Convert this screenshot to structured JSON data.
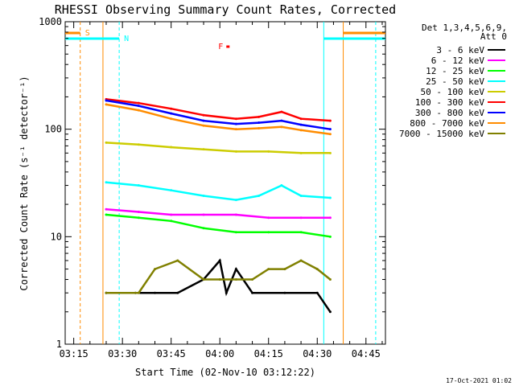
{
  "chart_data": {
    "type": "line",
    "title": "RHESSI Observing Summary Count Rates, Corrected",
    "xlabel": "Start Time (02-Nov-10 03:12:22)",
    "ylabel": "Corrected Count Rate (s⁻¹ detector⁻¹)",
    "y_scale": "log",
    "ylim": [
      1,
      1000
    ],
    "xlim": [
      "03:12:22",
      "04:51:00"
    ],
    "x_ticks": [
      "03:15",
      "03:30",
      "03:45",
      "04:00",
      "04:15",
      "04:30",
      "04:45"
    ],
    "y_ticks": [
      "1",
      "10",
      "100",
      "1000"
    ],
    "legend_header": [
      "Det 1,3,4,5,6,9,",
      "Att 0"
    ],
    "legend_position": "right-outside",
    "series": [
      {
        "name": "3 - 6 keV",
        "color": "#000000",
        "x": [
          "03:25",
          "03:34",
          "03:40",
          "03:47",
          "03:55",
          "04:00",
          "04:02",
          "04:05",
          "04:10",
          "04:20",
          "04:30",
          "04:34"
        ],
        "values": [
          3,
          3,
          3,
          3,
          4,
          6,
          3,
          5,
          3,
          3,
          3,
          2
        ]
      },
      {
        "name": "6 - 12 keV",
        "color": "#ff00ff",
        "x": [
          "03:25",
          "03:35",
          "03:45",
          "03:55",
          "04:05",
          "04:15",
          "04:25",
          "04:34"
        ],
        "values": [
          18,
          17,
          16,
          16,
          16,
          15,
          15,
          15
        ]
      },
      {
        "name": "12 - 25 keV",
        "color": "#00ff00",
        "x": [
          "03:25",
          "03:35",
          "03:45",
          "03:55",
          "04:05",
          "04:15",
          "04:25",
          "04:34"
        ],
        "values": [
          16,
          15,
          14,
          12,
          11,
          11,
          11,
          10
        ]
      },
      {
        "name": "25 - 50 keV",
        "color": "#00ffff",
        "x": [
          "03:25",
          "03:35",
          "03:45",
          "03:55",
          "04:05",
          "04:12",
          "04:19",
          "04:25",
          "04:34"
        ],
        "values": [
          32,
          30,
          27,
          24,
          22,
          24,
          30,
          24,
          23
        ]
      },
      {
        "name": "50 - 100 keV",
        "color": "#cccc00",
        "x": [
          "03:25",
          "03:35",
          "03:45",
          "03:55",
          "04:05",
          "04:15",
          "04:25",
          "04:34"
        ],
        "values": [
          75,
          72,
          68,
          65,
          62,
          62,
          60,
          60
        ]
      },
      {
        "name": "100 - 300 keV",
        "color": "#ff0000",
        "x": [
          "03:25",
          "03:35",
          "03:45",
          "03:55",
          "04:05",
          "04:12",
          "04:19",
          "04:25",
          "04:34"
        ],
        "values": [
          190,
          175,
          155,
          135,
          125,
          130,
          145,
          125,
          120
        ]
      },
      {
        "name": "300 - 800 keV",
        "color": "#0000ff",
        "x": [
          "03:25",
          "03:35",
          "03:45",
          "03:55",
          "04:05",
          "04:12",
          "04:19",
          "04:25",
          "04:34"
        ],
        "values": [
          185,
          165,
          140,
          120,
          112,
          115,
          120,
          110,
          100
        ]
      },
      {
        "name": "800 - 7000 keV",
        "color": "#ff8c00",
        "x": [
          "03:25",
          "03:35",
          "03:45",
          "03:55",
          "04:05",
          "04:12",
          "04:19",
          "04:25",
          "04:34"
        ],
        "values": [
          170,
          150,
          125,
          108,
          100,
          102,
          105,
          98,
          90
        ]
      },
      {
        "name": "7000 - 15000 keV",
        "color": "#808000",
        "x": [
          "03:25",
          "03:35",
          "03:40",
          "03:47",
          "03:55",
          "04:00",
          "04:05",
          "04:10",
          "04:15",
          "04:20",
          "04:25",
          "04:30",
          "04:34"
        ],
        "values": [
          3,
          3,
          5,
          6,
          4,
          4,
          4,
          4,
          5,
          5,
          6,
          5,
          4
        ]
      }
    ],
    "markers": {
      "vertical_lines": [
        {
          "time": "03:17",
          "color": "#ff8c00",
          "style": "dashed"
        },
        {
          "time": "03:24",
          "color": "#ff8c00",
          "style": "solid"
        },
        {
          "time": "03:29",
          "color": "#00ffff",
          "style": "dashed"
        },
        {
          "time": "04:32",
          "color": "#00ffff",
          "style": "solid"
        },
        {
          "time": "04:38",
          "color": "#ff8c00",
          "style": "solid"
        },
        {
          "time": "04:48",
          "color": "#00ffff",
          "style": "dashed"
        }
      ],
      "bars": [
        {
          "label": "S",
          "from": "03:12:22",
          "to": "03:17",
          "color": "#ff8c00"
        },
        {
          "label": "N",
          "from": "03:12:22",
          "to": "03:29",
          "color": "#00ffff"
        },
        {
          "label": "",
          "from": "04:38",
          "to": "04:51",
          "color": "#ff8c00"
        },
        {
          "label": "",
          "from": "04:32",
          "to": "04:51",
          "color": "#00ffff"
        },
        {
          "label": "F",
          "from": "04:02",
          "to": "04:03",
          "color": "#ff0000"
        }
      ]
    }
  },
  "footer": {
    "timestamp": "17-Oct-2021 01:02"
  }
}
